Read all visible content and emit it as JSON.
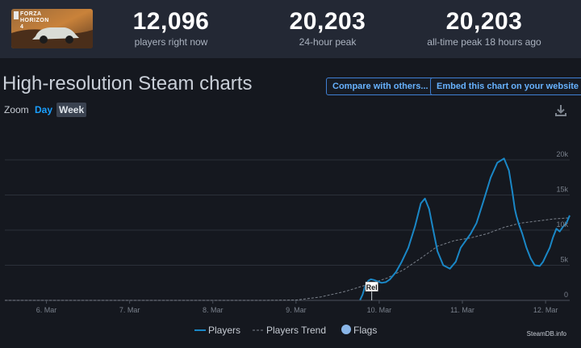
{
  "header": {
    "game_logo_text": "FORZA HORIZON 4",
    "stats": [
      {
        "value": "12,096",
        "label": "players right now"
      },
      {
        "value": "20,203",
        "label": "24-hour peak"
      },
      {
        "value": "20,203",
        "label": "all-time peak 18 hours ago"
      }
    ]
  },
  "page": {
    "title": "High-resolution Steam charts",
    "compare_button": "Compare with others...",
    "embed_button": "Embed this chart on your website",
    "zoom_label": "Zoom",
    "zoom_day": "Day",
    "zoom_week": "Week",
    "download_icon": "download-icon"
  },
  "colors": {
    "players": "#1a87c6",
    "trend": "#7b818b",
    "flags": "#8ab6e8",
    "accent": "#1a9fff"
  },
  "chart_data": {
    "type": "line",
    "x_unit": "days since 5 Mar (local)",
    "x_ticks": [
      {
        "x": 1,
        "label": "6. Mar"
      },
      {
        "x": 2,
        "label": "7. Mar"
      },
      {
        "x": 3,
        "label": "8. Mar"
      },
      {
        "x": 4,
        "label": "9. Mar"
      },
      {
        "x": 5,
        "label": "10. Mar"
      },
      {
        "x": 6,
        "label": "11. Mar"
      },
      {
        "x": 7,
        "label": "12. Mar"
      }
    ],
    "y_ticks": [
      {
        "y": 0,
        "label": "0"
      },
      {
        "y": 5000,
        "label": "5k"
      },
      {
        "y": 10000,
        "label": "10k"
      },
      {
        "y": 15000,
        "label": "15k"
      },
      {
        "y": 20000,
        "label": "20k"
      }
    ],
    "xlim": [
      0.5,
      7.29
    ],
    "ylim": [
      0,
      23000
    ],
    "grid": true,
    "legend_position": "bottom-center",
    "series": [
      {
        "name": "Players",
        "x": [
          4.77,
          4.8,
          4.83,
          4.87,
          4.9,
          4.94,
          4.98,
          5.03,
          5.08,
          5.13,
          5.2,
          5.27,
          5.35,
          5.43,
          5.5,
          5.55,
          5.6,
          5.65,
          5.7,
          5.77,
          5.85,
          5.92,
          5.98,
          6.04,
          6.1,
          6.17,
          6.25,
          6.34,
          6.42,
          6.5,
          6.56,
          6.6,
          6.63,
          6.65,
          6.68,
          6.72,
          6.77,
          6.82,
          6.87,
          6.93,
          6.97,
          7.01,
          7.05,
          7.09,
          7.13,
          7.17,
          7.21,
          7.25,
          7.29
        ],
        "y": [
          50,
          800,
          2000,
          2800,
          3000,
          2900,
          2700,
          2500,
          2600,
          3000,
          4000,
          5500,
          7500,
          10500,
          13800,
          14500,
          13000,
          10000,
          7000,
          5000,
          4500,
          5500,
          7500,
          8500,
          9500,
          11000,
          14000,
          17500,
          19600,
          20200,
          18500,
          15500,
          13000,
          12000,
          10800,
          9500,
          7500,
          6000,
          5000,
          4900,
          5500,
          6500,
          7500,
          9000,
          10200,
          9800,
          10500,
          11000,
          12096
        ]
      },
      {
        "name": "Players Trend",
        "x": [
          0.5,
          1,
          2,
          3,
          3.6,
          4,
          4.3,
          4.6,
          4.9,
          5.1,
          5.3,
          5.5,
          5.7,
          5.9,
          6.1,
          6.3,
          6.5,
          6.7,
          6.9,
          7.1,
          7.29
        ],
        "y": [
          0,
          0,
          0,
          0,
          0,
          50,
          500,
          1300,
          2400,
          3200,
          4400,
          6000,
          7700,
          8500,
          8900,
          9500,
          10400,
          11000,
          11300,
          11600,
          11750
        ]
      }
    ],
    "flags": [
      {
        "x": 4.91,
        "label": "Rel"
      }
    ],
    "legend": [
      "Players",
      "Players Trend",
      "Flags"
    ],
    "credit": "SteamDB.info"
  }
}
